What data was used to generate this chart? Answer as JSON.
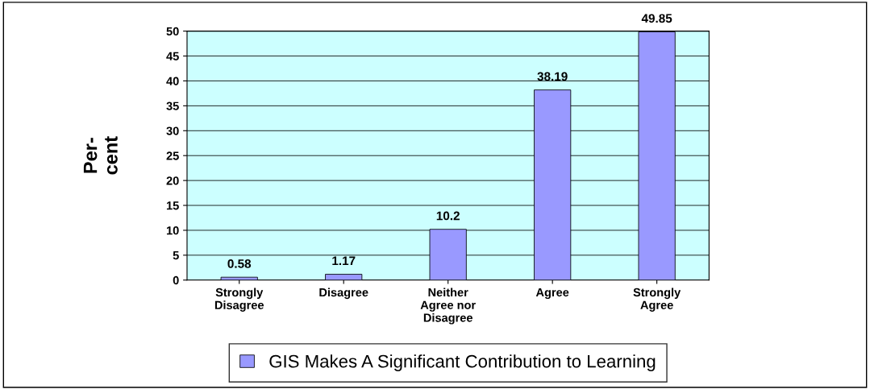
{
  "chart_data": {
    "type": "bar",
    "ylabel": "Per-\ncent",
    "categories": [
      "Strongly\nDisagree",
      "Disagree",
      "Neither\nAgree nor\nDisagree",
      "Agree",
      "Strongly\nAgree"
    ],
    "series": [
      {
        "name": "GIS Makes A Significant Contribution to Learning",
        "color": "#9999ff",
        "values": [
          0.58,
          1.17,
          10.2,
          38.19,
          49.85
        ]
      }
    ],
    "ylim": [
      0,
      50
    ],
    "yticks": [
      0,
      5,
      10,
      15,
      20,
      25,
      30,
      35,
      40,
      45,
      50
    ],
    "grid": "y",
    "legend": "bottom",
    "data_labels": true
  }
}
